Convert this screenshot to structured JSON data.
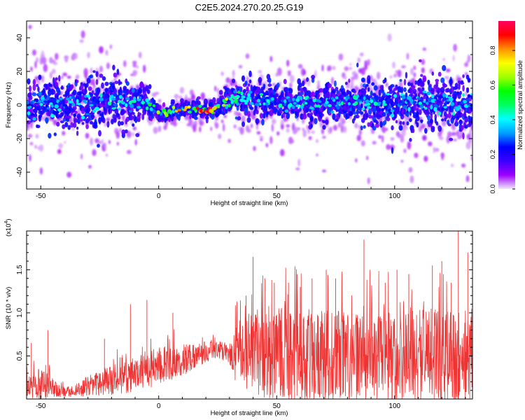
{
  "figure": {
    "title": "C2E5.2024.270.20.25.G19"
  },
  "chart_data": [
    {
      "type": "heatmap",
      "description_role": "spectrogram",
      "xlabel": "Height of straight line (km)",
      "ylabel": "Frequency (Hz)",
      "xlim": [
        -56,
        133
      ],
      "ylim": [
        -50,
        50
      ],
      "xticks": [
        -50,
        0,
        50,
        100
      ],
      "xtick_labels": [
        "-50",
        "0",
        "50",
        "100"
      ],
      "yticks": [
        -40,
        -20,
        0,
        20,
        40
      ],
      "ytick_labels": [
        "-40",
        "-20",
        "0",
        "20",
        "40"
      ],
      "grid": false,
      "colorbar": {
        "label": "Normalized spectral amplitude",
        "range": [
          0,
          0.97
        ],
        "ticks": [
          0.0,
          0.2,
          0.4,
          0.6,
          0.8
        ],
        "tick_labels": [
          "0.0",
          "0.2",
          "0.4",
          "0.6",
          "0.8"
        ],
        "colormap": [
          "#f0e8ff",
          "#9c00ff",
          "#3a00ff",
          "#0000ff",
          "#00a0ff",
          "#00ffff",
          "#00ff60",
          "#00ff00",
          "#a0ff00",
          "#ffff00",
          "#ff9000",
          "#ff0000",
          "#ff0060"
        ]
      },
      "band_center": {
        "x": [
          -56,
          -40,
          -30,
          -20,
          -10,
          -2,
          0,
          10,
          20,
          27,
          30,
          40,
          50,
          60,
          70,
          80,
          90,
          100,
          110,
          120,
          133
        ],
        "frequency_hz": [
          0,
          2,
          1,
          2,
          1,
          0,
          -4,
          -3,
          -3,
          -1,
          3,
          3,
          2,
          1,
          1,
          2,
          1,
          0,
          3,
          1,
          0
        ]
      },
      "band_halfwidth": {
        "x": [
          -56,
          -30,
          -10,
          0,
          25,
          30,
          60,
          90,
          133
        ],
        "frequency_hz": [
          10,
          11,
          9,
          3,
          3,
          7,
          8,
          9,
          11
        ]
      },
      "peak_amplitude": {
        "x": [
          -56,
          -20,
          -5,
          0,
          5,
          15,
          22,
          27,
          32,
          50,
          80,
          100,
          133
        ],
        "amplitude": [
          0.35,
          0.45,
          0.5,
          0.8,
          0.95,
          0.93,
          0.95,
          0.95,
          0.55,
          0.45,
          0.5,
          0.45,
          0.4
        ]
      }
    },
    {
      "type": "line",
      "xlabel": "Height of straight line (km)",
      "ylabel": "SNR (10 * v/v)",
      "y_multiplier_label": "(x10",
      "y_multiplier_exp": "4",
      "y_multiplier_close": ")",
      "xlim": [
        -56,
        133
      ],
      "ylim": [
        0,
        1.95
      ],
      "xticks": [
        -50,
        0,
        50,
        100
      ],
      "xtick_labels": [
        "-50",
        "0",
        "50",
        "100"
      ],
      "yticks": [
        0.5,
        1.0,
        1.5
      ],
      "ytick_labels": [
        "0.5",
        "1.0",
        "1.5"
      ],
      "grid": false,
      "color": "#ee3333",
      "envelope": {
        "x": [
          -56,
          -50,
          -45,
          -40,
          -35,
          -30,
          -20,
          -10,
          0,
          10,
          20,
          25,
          30,
          33,
          40,
          50,
          60,
          70,
          80,
          90,
          100,
          110,
          120,
          133
        ],
        "mean": [
          0.15,
          0.18,
          0.12,
          0.08,
          0.1,
          0.15,
          0.22,
          0.3,
          0.38,
          0.45,
          0.55,
          0.58,
          0.52,
          0.5,
          0.55,
          0.52,
          0.5,
          0.5,
          0.48,
          0.5,
          0.48,
          0.5,
          0.5,
          0.5
        ],
        "spread": [
          0.12,
          0.2,
          0.12,
          0.06,
          0.08,
          0.12,
          0.18,
          0.22,
          0.22,
          0.2,
          0.12,
          0.1,
          0.12,
          0.35,
          0.5,
          0.55,
          0.55,
          0.55,
          0.55,
          0.55,
          0.55,
          0.55,
          0.55,
          0.55
        ]
      },
      "spikes": [
        {
          "x": -54,
          "y": 0.65
        },
        {
          "x": -47,
          "y": 0.8
        },
        {
          "x": -23,
          "y": 0.7
        },
        {
          "x": -12,
          "y": 1.1
        },
        {
          "x": -5,
          "y": 1.15
        },
        {
          "x": 6,
          "y": 1.0
        },
        {
          "x": 37,
          "y": 1.2
        },
        {
          "x": 40,
          "y": 1.65
        },
        {
          "x": 45,
          "y": 1.4
        },
        {
          "x": 49,
          "y": 1.35
        },
        {
          "x": 55,
          "y": 1.35
        },
        {
          "x": 60,
          "y": 1.3
        },
        {
          "x": 65,
          "y": 1.4
        },
        {
          "x": 71,
          "y": 1.5
        },
        {
          "x": 75,
          "y": 1.4
        },
        {
          "x": 87,
          "y": 1.85
        },
        {
          "x": 96,
          "y": 1.35
        },
        {
          "x": 101,
          "y": 1.5
        },
        {
          "x": 106,
          "y": 1.45
        },
        {
          "x": 116,
          "y": 1.55
        },
        {
          "x": 120,
          "y": 1.6
        },
        {
          "x": 124,
          "y": 1.35
        },
        {
          "x": 127,
          "y": 1.95
        },
        {
          "x": 131,
          "y": 1.7
        }
      ]
    }
  ]
}
